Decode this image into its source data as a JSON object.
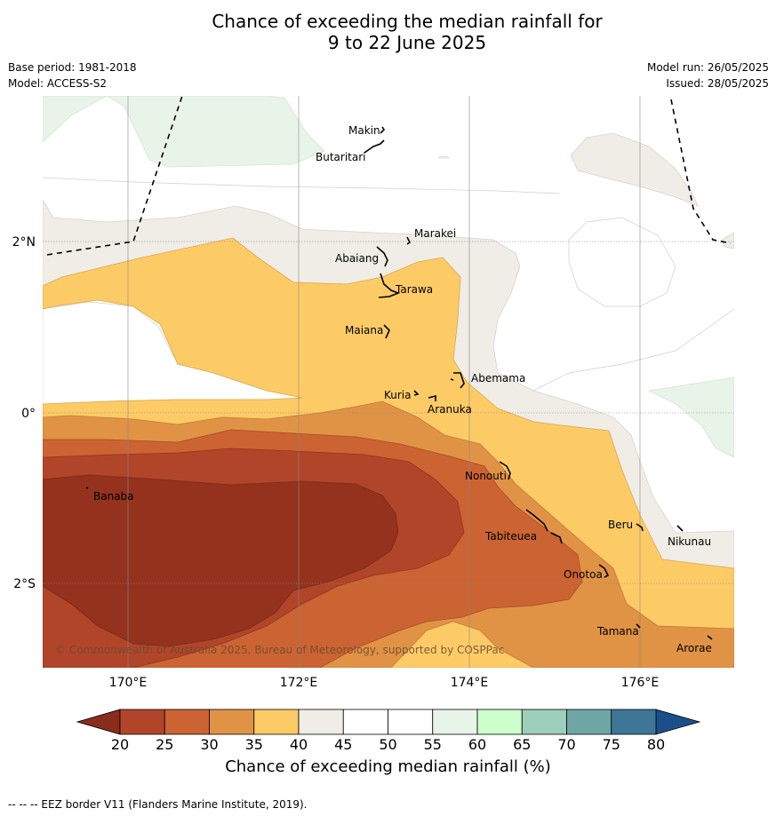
{
  "title_line1": "Chance of exceeding the median rainfall for",
  "title_line2": "9 to 22 June 2025",
  "base_period": "Base period: 1981-2018",
  "model": "Model: ACCESS-S2",
  "model_run": "Model run: 26/05/2025",
  "issued": "Issued: 28/05/2025",
  "copyright": "© Commonwealth of Australia 2025, Bureau of Meteorology, supported by COSPPac",
  "colorbar_label": "Chance of exceeding median rainfall (%)",
  "footnote": "--  --  -- EEZ border V11 (Flanders Marine Institute, 2019).",
  "longitude_labels": [
    "170°E",
    "172°E",
    "174°E",
    "176°E"
  ],
  "latitude_labels": [
    "2°N",
    "0°",
    "2°S"
  ],
  "places": [
    "Makin",
    "Butaritari",
    "Marakei",
    "Abaiang",
    "Tarawa",
    "Maiana",
    "Abemama",
    "Kuria",
    "Aranuka",
    "Nonouti",
    "Banaba",
    "Tabiteuea",
    "Beru",
    "Nikunau",
    "Onotoa",
    "Tamana",
    "Arorae"
  ],
  "colorbar": {
    "ticks": [
      "20",
      "25",
      "30",
      "35",
      "40",
      "45",
      "50",
      "55",
      "60",
      "65",
      "70",
      "75",
      "80"
    ],
    "colors": [
      "#b1452a",
      "#cb6432",
      "#e09345",
      "#fdcb66",
      "#f0ece6",
      "#ffffff",
      "#ffffff",
      "#e9f4e8",
      "#ccffcc",
      "#9dcfbb",
      "#6ea6a6",
      "#3e7698"
    ],
    "under_color": "#8a2c1c",
    "over_color": "#1b4f8a"
  }
}
